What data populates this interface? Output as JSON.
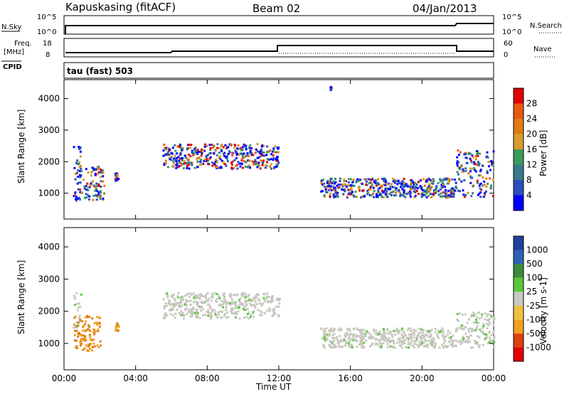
{
  "header": {
    "station": "Kapuskasing (fitACF)",
    "beam": "Beam 02",
    "date": "04/Jan/2013"
  },
  "strip": {
    "nsky_label": "N.Sky",
    "nsearch_label": "N.Search",
    "noise_ticks": [
      "10^5",
      "10^0"
    ],
    "freq_label_1": "Freq.",
    "freq_label_2": "[MHz]",
    "freq_ticks": [
      "18",
      "8"
    ],
    "nave_label": "Nave",
    "nave_ticks": [
      "60",
      "0"
    ],
    "cpid_label": "CPID",
    "cpid_text": "tau (fast) 503"
  },
  "chart_data": [
    {
      "type": "heatmap",
      "name": "power",
      "ylabel": "Slant Range [km]",
      "yticks": [
        1000,
        2000,
        3000,
        4000
      ],
      "ylim": [
        180,
        4600
      ],
      "xlim": [
        0,
        24
      ],
      "colorbar": {
        "label": "Power [dB]",
        "ticks": [
          "28",
          "24",
          "20",
          "16",
          "12",
          "8",
          "4"
        ],
        "colors": [
          "#0000ff",
          "#2a50b8",
          "#3a7a8c",
          "#3c9a5a",
          "#d89c2c",
          "#e07c10",
          "#e85a10",
          "#e00000"
        ]
      },
      "echo_regions": [
        {
          "t0": 0.5,
          "t1": 0.9,
          "r0": 1300,
          "r1": 2600
        },
        {
          "t0": 0.5,
          "t1": 2.2,
          "r0": 800,
          "r1": 1900
        },
        {
          "t0": 2.8,
          "t1": 3.0,
          "r0": 1400,
          "r1": 1700
        },
        {
          "t0": 5.5,
          "t1": 12.0,
          "r0": 1800,
          "r1": 2600
        },
        {
          "t0": 14.3,
          "t1": 21.9,
          "r0": 900,
          "r1": 1500
        },
        {
          "t0": 21.9,
          "t1": 24.0,
          "r0": 900,
          "r1": 2400
        },
        {
          "t0": 14.8,
          "t1": 14.9,
          "r0": 4300,
          "r1": 4400
        }
      ]
    },
    {
      "type": "heatmap",
      "name": "velocity",
      "ylabel": "Slant Range [km]",
      "yticks": [
        1000,
        2000,
        3000,
        4000
      ],
      "ylim": [
        180,
        4600
      ],
      "xlim": [
        0,
        24
      ],
      "xticks": [
        "00:00",
        "04:00",
        "08:00",
        "12:00",
        "16:00",
        "20:00",
        "00:00"
      ],
      "xlabel": "Time UT",
      "colorbar": {
        "label": "Velocity [m s-1]",
        "ticks": [
          "1000",
          "500",
          "100",
          "25",
          "-25",
          "-100",
          "-500",
          "-1000"
        ],
        "colors": [
          "#e00000",
          "#e04010",
          "#f0a020",
          "#f0c040",
          "#c8c8c0",
          "#5ac838",
          "#3c8c3c",
          "#2c64b4",
          "#2040a0"
        ]
      },
      "echo_regions": [
        {
          "t0": 0.5,
          "t1": 0.9,
          "r0": 1500,
          "r1": 2600,
          "kind": "gray"
        },
        {
          "t0": 0.5,
          "t1": 2.0,
          "r0": 800,
          "r1": 1900,
          "kind": "orange"
        },
        {
          "t0": 2.8,
          "t1": 3.0,
          "r0": 1400,
          "r1": 1700,
          "kind": "orange"
        },
        {
          "t0": 5.5,
          "t1": 12.0,
          "r0": 1800,
          "r1": 2600,
          "kind": "gray"
        },
        {
          "t0": 14.3,
          "t1": 21.9,
          "r0": 900,
          "r1": 1500,
          "kind": "gray"
        },
        {
          "t0": 21.9,
          "t1": 24.0,
          "r0": 900,
          "r1": 2000,
          "kind": "gray"
        }
      ]
    }
  ]
}
